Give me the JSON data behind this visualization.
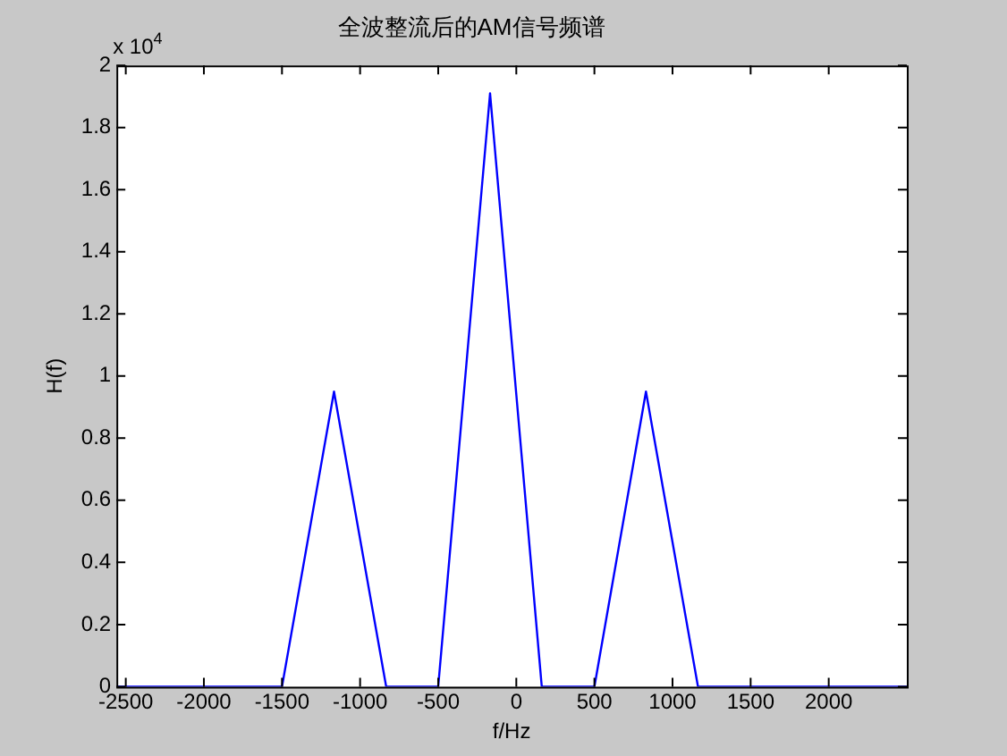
{
  "chart_data": {
    "type": "line",
    "title": "全波整流后的AM信号频谱",
    "xlabel": "f/Hz",
    "ylabel": "H(f)",
    "annotations": [
      "x 10$^{4}$"
    ],
    "x": [
      -2560,
      -1500,
      -1167,
      -833,
      -500,
      -168,
      163,
      500,
      830,
      1163,
      2500
    ],
    "series": [
      {
        "color": "#0000ff",
        "values": [
          0,
          0,
          0.95,
          0,
          0,
          1.91,
          0,
          0,
          0.95,
          0,
          0
        ]
      }
    ],
    "xlim": [
      -2560,
      2500
    ],
    "xticks": [
      -2500,
      -2000,
      -1500,
      -1000,
      -500,
      0,
      500,
      1000,
      1500,
      2000
    ],
    "ylim": [
      0,
      2
    ],
    "yticks": [
      0,
      0.2,
      0.4,
      0.6,
      0.8,
      1,
      1.2,
      1.4,
      1.6,
      1.8,
      2
    ],
    "grid": false,
    "legend": false,
    "marker": "none",
    "line_style": "solid"
  }
}
